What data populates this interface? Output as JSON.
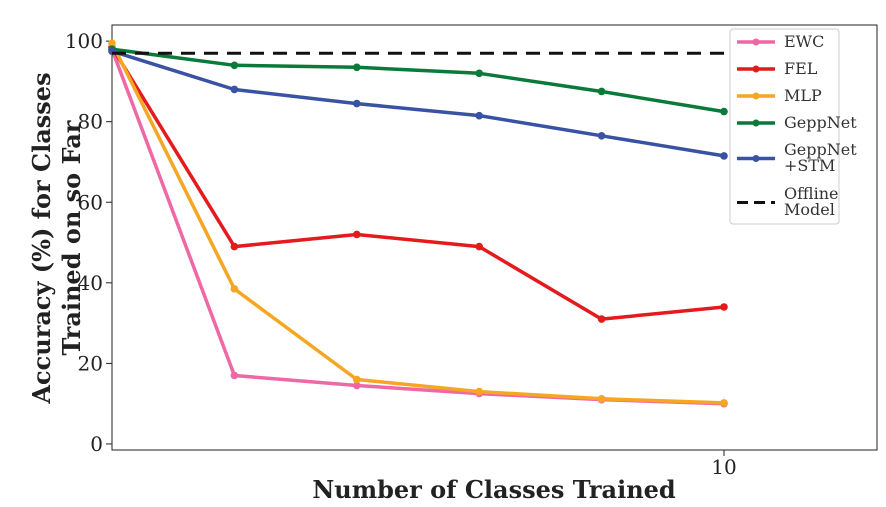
{
  "chart_data": {
    "type": "line",
    "title": "",
    "xlabel": "Number of Classes Trained",
    "ylabel_lines": [
      "Accuracy (%) for Classes",
      "Trained on so Far"
    ],
    "x": [
      2,
      4,
      6,
      8,
      10
    ],
    "x_start": 0,
    "xlim": [
      0,
      12.5
    ],
    "ylim": [
      -1.5,
      104
    ],
    "x_ticks": [
      10
    ],
    "x_tick_labels": [
      "10"
    ],
    "y_ticks": [
      0,
      20,
      40,
      60,
      80,
      100
    ],
    "y_tick_labels": [
      "0",
      "20",
      "40",
      "60",
      "80",
      "100"
    ],
    "grid": false,
    "legend_position": "top-right",
    "series": [
      {
        "name": "EWC",
        "legend_lines": [
          "EWC"
        ],
        "color": "#f067a6",
        "dashed": false,
        "start": 98,
        "values": [
          17,
          14.5,
          12.5,
          11,
          10
        ]
      },
      {
        "name": "FEL",
        "legend_lines": [
          "FEL"
        ],
        "color": "#e41a1c",
        "dashed": false,
        "start": 98.5,
        "values": [
          49,
          52,
          49,
          31,
          34
        ]
      },
      {
        "name": "MLP",
        "legend_lines": [
          "MLP"
        ],
        "color": "#f5a623",
        "dashed": false,
        "start": 99.5,
        "values": [
          38.5,
          16,
          13,
          11.2,
          10.2
        ]
      },
      {
        "name": "GeppNet",
        "legend_lines": [
          "GeppNet"
        ],
        "color": "#0a7a3a",
        "dashed": false,
        "start": 98,
        "values": [
          94,
          93.5,
          92,
          87.5,
          82.5
        ]
      },
      {
        "name": "GeppNet +STM",
        "legend_lines": [
          "GeppNet",
          "+STM"
        ],
        "color": "#3a52a3",
        "dashed": false,
        "start": 97.5,
        "values": [
          88,
          84.5,
          81.5,
          76.5,
          71.5
        ]
      },
      {
        "name": "Offline Model",
        "legend_lines": [
          "Offline",
          "Model"
        ],
        "color": "#111111",
        "dashed": true,
        "start": 97,
        "values": [
          97,
          97,
          97,
          97,
          97
        ]
      }
    ]
  }
}
